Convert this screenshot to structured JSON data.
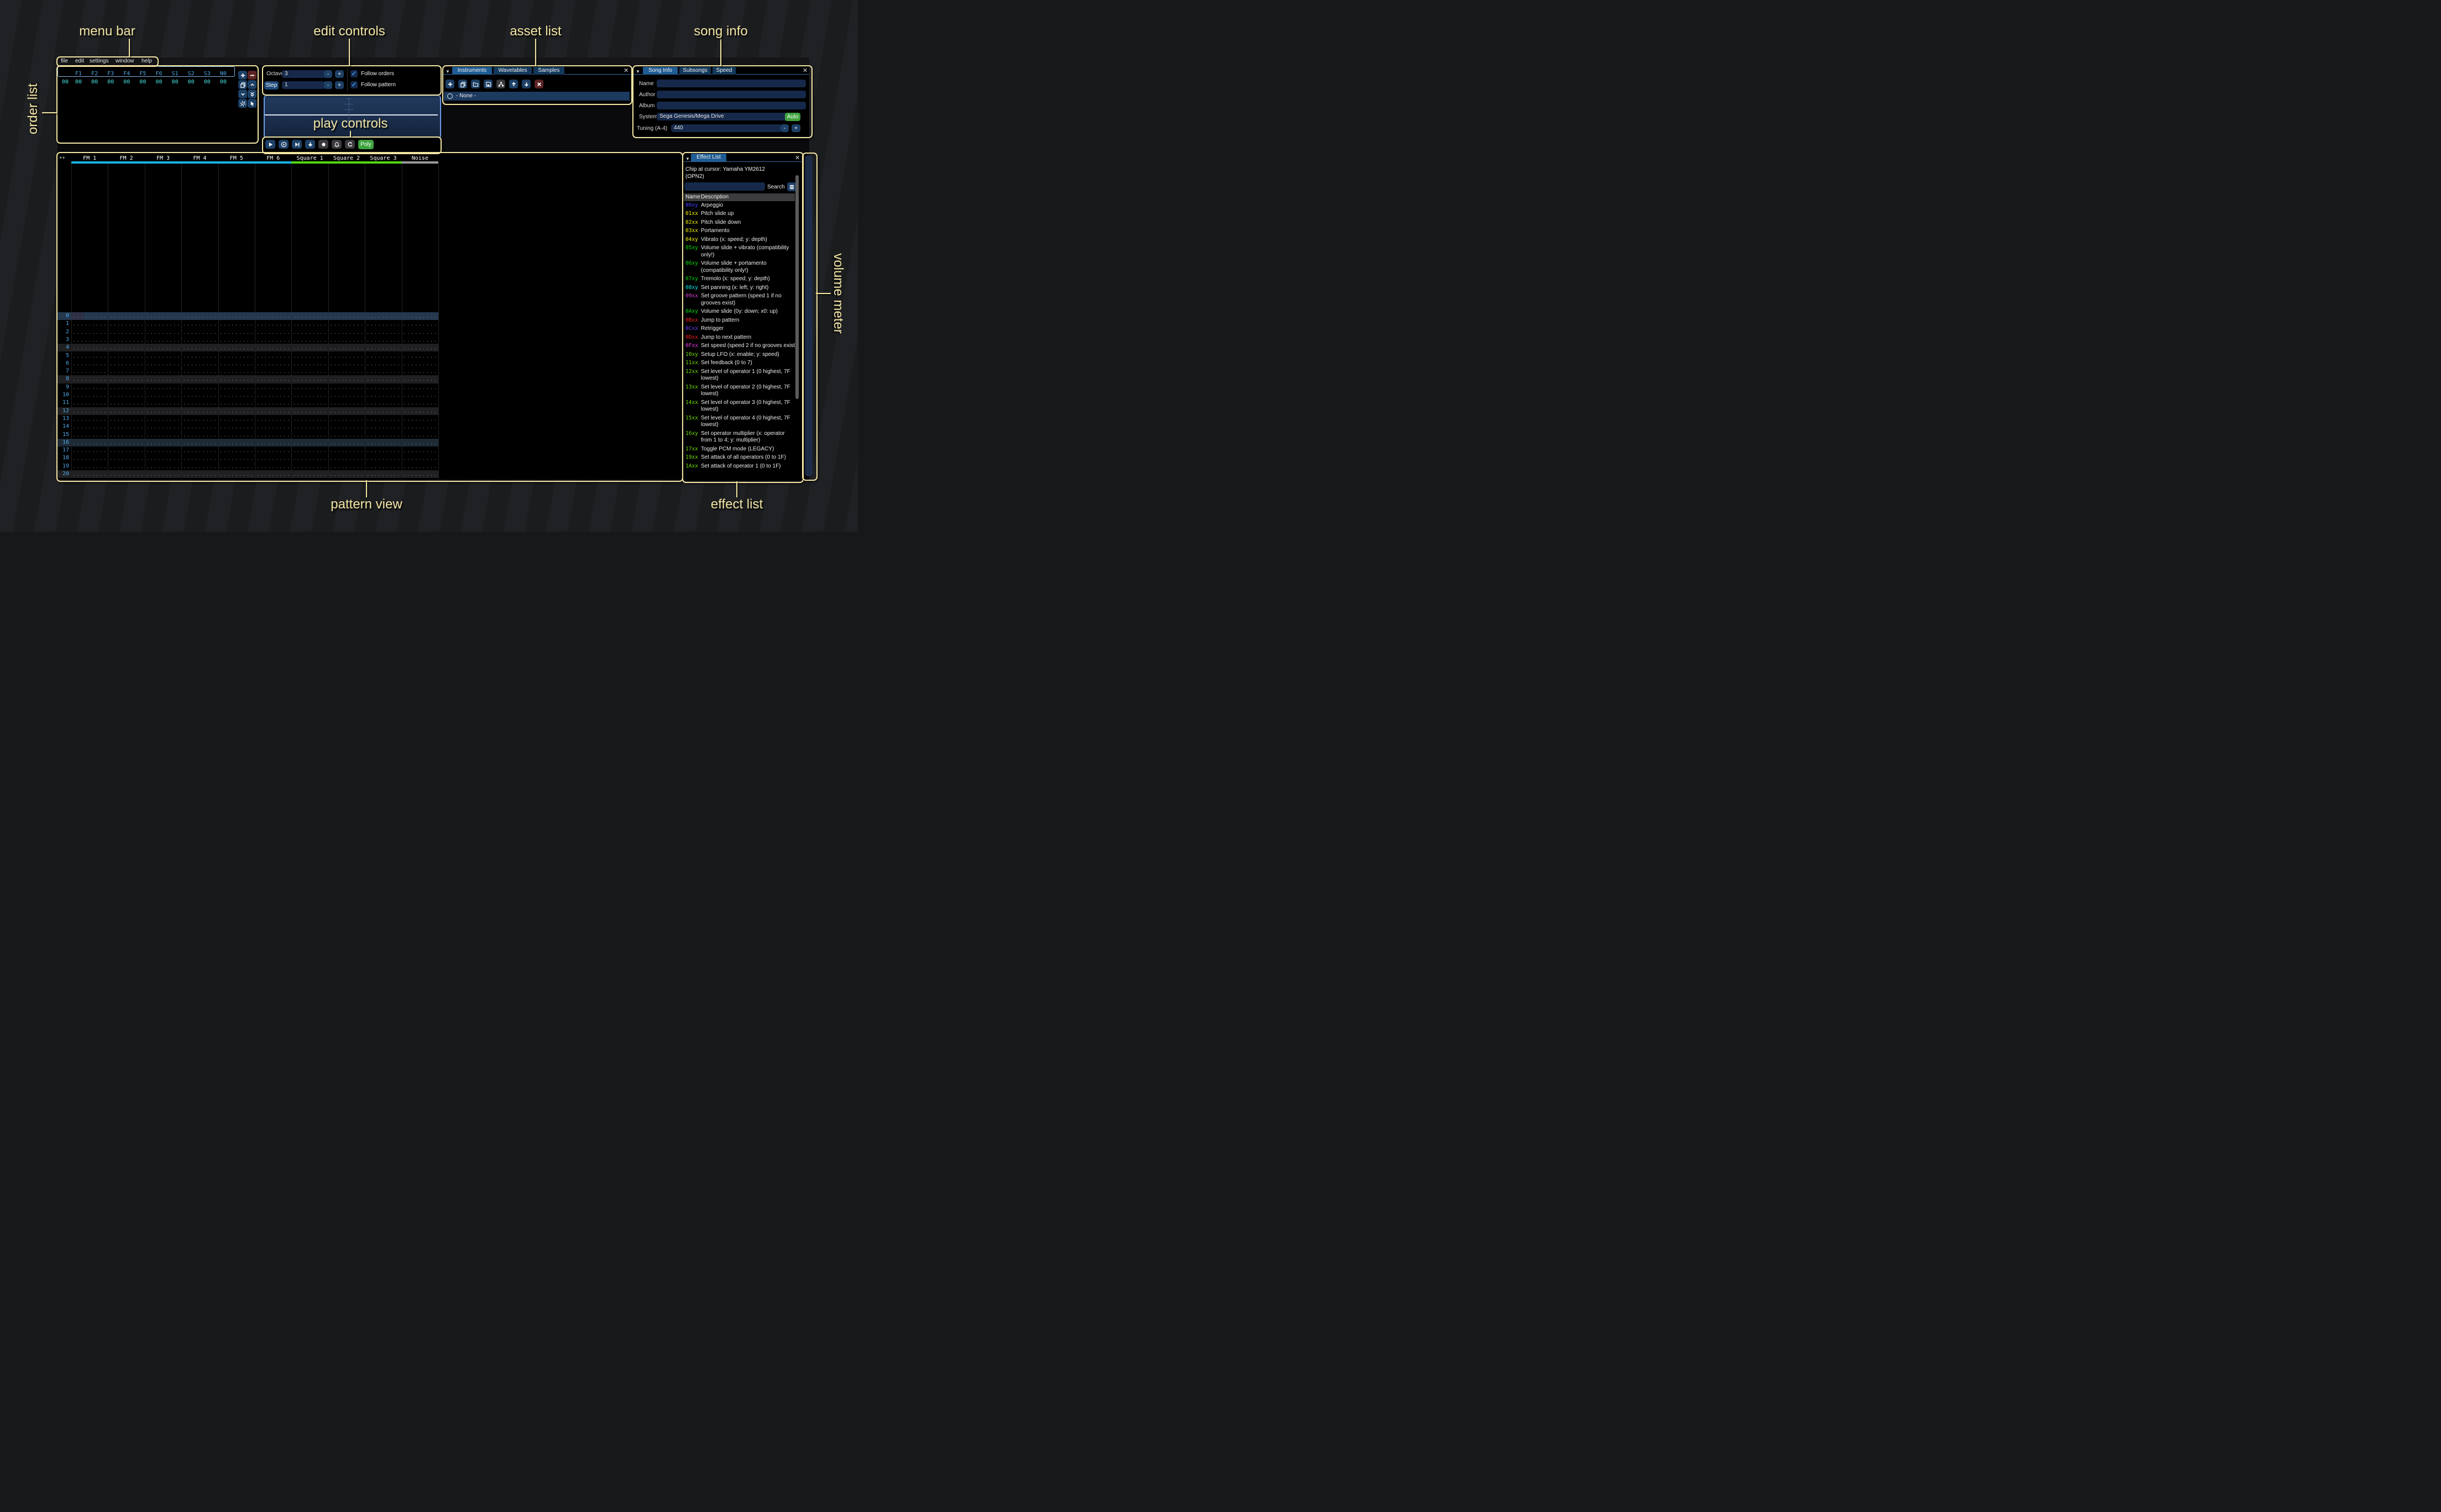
{
  "annotations": {
    "menu_bar": "menu bar",
    "edit_controls": "edit controls",
    "asset_list": "asset list",
    "song_info": "song info",
    "order_list": "order list",
    "play_controls": "play controls",
    "pattern_view": "pattern view",
    "effect_list": "effect list",
    "volume_meter": "volume meter",
    "accent_color": "#f2e5a3"
  },
  "menu": {
    "items": [
      "file",
      "edit",
      "settings",
      "window",
      "help"
    ]
  },
  "order_list": {
    "columns": [
      "F1",
      "F2",
      "F3",
      "F4",
      "F5",
      "F6",
      "S1",
      "S2",
      "S3",
      "N0"
    ],
    "row_label": "00",
    "row_values": [
      "00",
      "00",
      "00",
      "00",
      "00",
      "00",
      "00",
      "00",
      "00",
      "00"
    ],
    "buttons": [
      "add",
      "remove",
      "duplicate",
      "move-up",
      "move-down",
      "duplicate-to-end",
      "unlink",
      "edit-mode"
    ]
  },
  "edit_controls": {
    "octave_label": "Octave",
    "octave_value": "3",
    "step_label": "Step",
    "step_value": "1",
    "minus_label": "-",
    "plus_label": "+",
    "follow_orders": "Follow orders",
    "follow_pattern": "Follow pattern",
    "checkbox_checked": "✓"
  },
  "play_controls": {
    "buttons": [
      "play",
      "play-from-beginning",
      "play-from-cursor",
      "step-row",
      "record",
      "metronome",
      "repeat"
    ],
    "poly_label": "Poly"
  },
  "asset_list": {
    "tabs": [
      "Instruments",
      "Wavetables",
      "Samples"
    ],
    "active_tab": "Instruments",
    "toolbar": [
      "add",
      "duplicate",
      "open",
      "save",
      "toggle-folders",
      "move-up",
      "move-down",
      "delete"
    ],
    "none_item": "- None -"
  },
  "song_info": {
    "tabs": [
      "Song Info",
      "Subsongs",
      "Speed"
    ],
    "active_tab": "Song Info",
    "name_label": "Name",
    "author_label": "Author",
    "album_label": "Album",
    "system_label": "System",
    "system_value": "Sega Genesis/Mega Drive",
    "auto_label": "Auto",
    "tuning_label": "Tuning (A-4)",
    "tuning_value": "440",
    "minus_label": "-",
    "plus_label": "+"
  },
  "pattern": {
    "corner_label": "++",
    "channels": [
      {
        "name": "FM 1",
        "color": "#18b2e8"
      },
      {
        "name": "FM 2",
        "color": "#18b2e8"
      },
      {
        "name": "FM 3",
        "color": "#18b2e8"
      },
      {
        "name": "FM 4",
        "color": "#18b2e8"
      },
      {
        "name": "FM 5",
        "color": "#18b2e8"
      },
      {
        "name": "FM 6",
        "color": "#18b2e8"
      },
      {
        "name": "Square 1",
        "color": "#52da12"
      },
      {
        "name": "Square 2",
        "color": "#52da12"
      },
      {
        "name": "Square 3",
        "color": "#52da12"
      },
      {
        "name": "Noise",
        "color": "#9a9a9a"
      }
    ],
    "rows": [
      "0",
      "1",
      "2",
      "3",
      "4",
      "5",
      "6",
      "7",
      "8",
      "9",
      "10",
      "11",
      "12",
      "13",
      "14",
      "15",
      "16",
      "17",
      "18",
      "19",
      "20"
    ],
    "row_colors": {
      "cursor": "#24384e",
      "beat4": "#202022",
      "beat16": "#1e2a36"
    }
  },
  "effect_list": {
    "tab": "Effect List",
    "chip_line1": "Chip at cursor: Yamaha YM2612",
    "chip_line2": "(OPN2)",
    "search_placeholder": "",
    "search_label": "Search",
    "col_name": "Name",
    "col_desc": "Description",
    "effects": [
      {
        "code": "00xy",
        "color": "#4545ff",
        "desc": "Arpeggio"
      },
      {
        "code": "01xx",
        "color": "#f5f000",
        "desc": "Pitch slide up"
      },
      {
        "code": "02xx",
        "color": "#f5f000",
        "desc": "Pitch slide down"
      },
      {
        "code": "03xx",
        "color": "#f5f000",
        "desc": "Portamento"
      },
      {
        "code": "04xy",
        "color": "#f5f000",
        "desc": "Vibrato (x: speed; y: depth)"
      },
      {
        "code": "05xy",
        "color": "#00dd00",
        "desc": "Volume slide + vibrato (compatibility only!)"
      },
      {
        "code": "06xy",
        "color": "#00dd00",
        "desc": "Volume slide + portamento (compatibility only!)"
      },
      {
        "code": "07xy",
        "color": "#00dd00",
        "desc": "Tremolo (x: speed; y: depth)"
      },
      {
        "code": "08xy",
        "color": "#00e5e5",
        "desc": "Set panning (x: left; y: right)"
      },
      {
        "code": "09xx",
        "color": "#d543d5",
        "desc": "Set groove pattern (speed 1 if no grooves exist)"
      },
      {
        "code": "0Axy",
        "color": "#00dd00",
        "desc": "Volume slide (0y: down; x0: up)"
      },
      {
        "code": "0Bxx",
        "color": "#f02222",
        "desc": "Jump to pattern"
      },
      {
        "code": "0Cxx",
        "color": "#6a3cff",
        "desc": "Retrigger"
      },
      {
        "code": "0Dxx",
        "color": "#f02222",
        "desc": "Jump to next pattern"
      },
      {
        "code": "0Fxx",
        "color": "#e83ce8",
        "desc": "Set speed (speed 2 if no grooves exist)"
      },
      {
        "code": "10xy",
        "color": "#6fdd00",
        "desc": "Setup LFO (x: enable; y: speed)"
      },
      {
        "code": "11xx",
        "color": "#6fdd00",
        "desc": "Set feedback (0 to 7)"
      },
      {
        "code": "12xx",
        "color": "#6fdd00",
        "desc": "Set level of operator 1 (0 highest, 7F lowest)"
      },
      {
        "code": "13xx",
        "color": "#6fdd00",
        "desc": "Set level of operator 2 (0 highest, 7F lowest)"
      },
      {
        "code": "14xx",
        "color": "#6fdd00",
        "desc": "Set level of operator 3 (0 highest, 7F lowest)"
      },
      {
        "code": "15xx",
        "color": "#6fdd00",
        "desc": "Set level of operator 4 (0 highest, 7F lowest)"
      },
      {
        "code": "16xy",
        "color": "#6fdd00",
        "desc": "Set operator multiplier (x: operator from 1 to 4; y: multiplier)"
      },
      {
        "code": "17xx",
        "color": "#6fdd00",
        "desc": "Toggle PCM mode (LEGACY)"
      },
      {
        "code": "19xx",
        "color": "#6fdd00",
        "desc": "Set attack of all operators (0 to 1F)"
      },
      {
        "code": "1Axx",
        "color": "#6fdd00",
        "desc": "Set attack of operator 1 (0 to 1F)"
      }
    ]
  }
}
